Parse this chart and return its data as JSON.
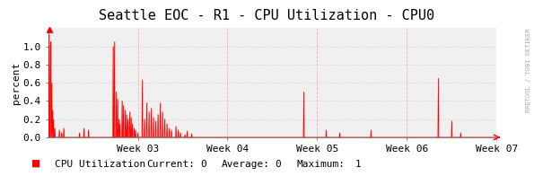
{
  "title": "Seattle EOC - R1 - CPU Utilization - CPU0",
  "ylabel": "percent",
  "watermark": "RRDTOOL / TOBI OETIKER",
  "legend_label": "CPU Utilization",
  "legend_current": "0",
  "legend_average": "0",
  "legend_maximum": "1",
  "bar_color": "#FF0000",
  "bg_color": "#FFFFFF",
  "plot_bg_color": "#F0F0F0",
  "ylim": [
    0.0,
    1.2
  ],
  "yticks": [
    0.0,
    0.2,
    0.4,
    0.6,
    0.8,
    1.0
  ],
  "ytick_labels": [
    "0.0",
    "0.2",
    "0.4",
    "0.6",
    "0.8",
    "1.0"
  ],
  "week_labels": [
    "Week 03",
    "Week 04",
    "Week 05",
    "Week 06",
    "Week 07"
  ],
  "n_points": 1000,
  "week_tick_positions": [
    200,
    400,
    600,
    800,
    1000
  ],
  "title_fontsize": 11,
  "axis_fontsize": 8,
  "tick_fontsize": 8
}
